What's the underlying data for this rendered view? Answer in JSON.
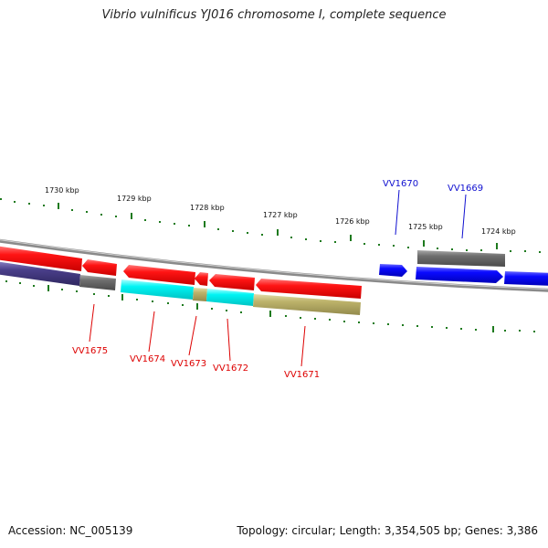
{
  "map": {
    "title": "Vibrio vulnificus YJ016 chromosome I, complete sequence",
    "accession_text": "Accession: NC_005139",
    "summary_text": "Topology: circular; Length: 3,354,505 bp; Genes: 3,386",
    "ruler_labels": [
      "1730 kbp",
      "1729 kbp",
      "1728 kbp",
      "1727 kbp",
      "1726 kbp",
      "1725 kbp",
      "1724 kbp"
    ],
    "gene_labels_top": [
      "VV1670",
      "VV1669"
    ],
    "gene_labels_bottom": [
      "VV1675",
      "VV1674",
      "VV1673",
      "VV1672",
      "VV1671"
    ],
    "colors": {
      "backbone": "#8a8a8a",
      "forward_cds": "#0a0aff",
      "reverse_cds": "#ff1010",
      "top_label": "#1010d0",
      "bottom_label": "#dd0000",
      "tick": "#1e7a1e",
      "feature_cyan": "#00ffff",
      "feature_olive": "#bdb36b",
      "feature_gray": "#6e6e6e",
      "feature_purple": "#4a3f8a"
    }
  }
}
